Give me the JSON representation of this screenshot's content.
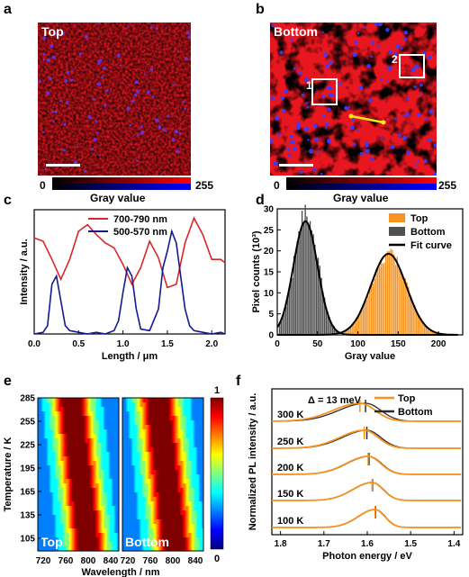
{
  "panels": {
    "a": {
      "letter": "a",
      "tag": "Top"
    },
    "b": {
      "letter": "b",
      "tag": "Bottom",
      "roi1": "1",
      "roi2": "2"
    },
    "colorbar_a": {
      "min": "0",
      "max": "255",
      "label": "Gray value"
    },
    "colorbar_b": {
      "min": "0",
      "max": "255",
      "label": "Gray value"
    },
    "c": {
      "letter": "c"
    },
    "d": {
      "letter": "d"
    },
    "e": {
      "letter": "e",
      "tag_left": "Top",
      "tag_right": "Bottom",
      "cb_max": "1",
      "cb_min": "0"
    },
    "f": {
      "letter": "f",
      "delta": "Δ = 13 meV"
    }
  },
  "colors": {
    "red": "#e8231e",
    "navy": "#131585",
    "orange": "#f7931e",
    "gray": "#555555"
  },
  "chart_data": [
    {
      "id": "c",
      "type": "line",
      "xlabel": "Length / μm",
      "ylabel": "Intensity / a.u.",
      "xlim": [
        0.0,
        2.15
      ],
      "xticks": [
        "0.0",
        "0.5",
        "1.0",
        "1.5",
        "2.0"
      ],
      "series": [
        {
          "name": "700-790 nm",
          "color": "#d9262a",
          "x": [
            0.0,
            0.1,
            0.2,
            0.3,
            0.4,
            0.5,
            0.6,
            0.7,
            0.8,
            0.9,
            1.0,
            1.1,
            1.2,
            1.3,
            1.4,
            1.5,
            1.6,
            1.7,
            1.8,
            1.9,
            2.0,
            2.1,
            2.15
          ],
          "y": [
            0.58,
            0.56,
            0.45,
            0.33,
            0.45,
            0.62,
            0.66,
            0.6,
            0.55,
            0.52,
            0.42,
            0.3,
            0.4,
            0.56,
            0.46,
            0.28,
            0.3,
            0.55,
            0.7,
            0.6,
            0.45,
            0.45,
            0.43
          ]
        },
        {
          "name": "500-570 nm",
          "color": "#161a8c",
          "x": [
            0.0,
            0.1,
            0.15,
            0.2,
            0.25,
            0.3,
            0.35,
            0.4,
            0.5,
            0.6,
            0.7,
            0.8,
            0.9,
            0.95,
            1.0,
            1.05,
            1.1,
            1.15,
            1.2,
            1.3,
            1.4,
            1.45,
            1.5,
            1.55,
            1.6,
            1.65,
            1.7,
            1.75,
            1.8,
            1.9,
            2.0,
            2.1,
            2.15
          ],
          "y": [
            0.0,
            0.01,
            0.05,
            0.3,
            0.35,
            0.2,
            0.05,
            0.02,
            0.01,
            0.0,
            0.01,
            0.0,
            0.02,
            0.08,
            0.25,
            0.4,
            0.35,
            0.15,
            0.03,
            0.02,
            0.15,
            0.4,
            0.5,
            0.62,
            0.55,
            0.35,
            0.15,
            0.05,
            0.02,
            0.01,
            0.0,
            0.01,
            0.0
          ]
        }
      ]
    },
    {
      "id": "d",
      "type": "bar",
      "xlabel": "Gray value",
      "ylabel": "Pixel counts (10³)",
      "xlim": [
        0,
        230
      ],
      "ylim": [
        0,
        30
      ],
      "xticks": [
        "0",
        "50",
        "100",
        "150",
        "200"
      ],
      "yticks": [
        "0",
        "5",
        "10",
        "15",
        "20",
        "25",
        "30"
      ],
      "series": [
        {
          "name": "Top",
          "color": "#f7931e",
          "mean": 138,
          "sd": 22,
          "peak": 19.3
        },
        {
          "name": "Bottom",
          "color": "#505050",
          "mean": 35,
          "sd": 15,
          "peak": 28.5
        },
        {
          "name": "Fit curve",
          "color": "#000000"
        }
      ]
    },
    {
      "id": "e",
      "type": "heatmap",
      "xlabel": "Wavelength / nm",
      "ylabel": "Temperature / K",
      "xticks": [
        "720",
        "760",
        "800",
        "840"
      ],
      "yticks": [
        "105",
        "135",
        "165",
        "195",
        "225",
        "255",
        "285"
      ],
      "colorbar": [
        0,
        1
      ]
    },
    {
      "id": "f",
      "type": "line",
      "xlabel": "Photon energy / eV",
      "ylabel": "Normalized PL intensity / a.u.",
      "xlim": [
        1.82,
        1.38
      ],
      "xticks": [
        "1.8",
        "1.7",
        "1.6",
        "1.5",
        "1.4"
      ],
      "temperatures": [
        "300 K",
        "250 K",
        "200 K",
        "150 K",
        "100 K"
      ],
      "peaks_top": [
        1.617,
        1.607,
        1.598,
        1.589,
        1.582
      ],
      "peaks_bottom": [
        1.604,
        1.601,
        1.596,
        1.588,
        1.581
      ],
      "series": [
        {
          "name": "Top",
          "color": "#f7931e"
        },
        {
          "name": "Bottom",
          "color": "#2b2b2b"
        }
      ]
    }
  ]
}
